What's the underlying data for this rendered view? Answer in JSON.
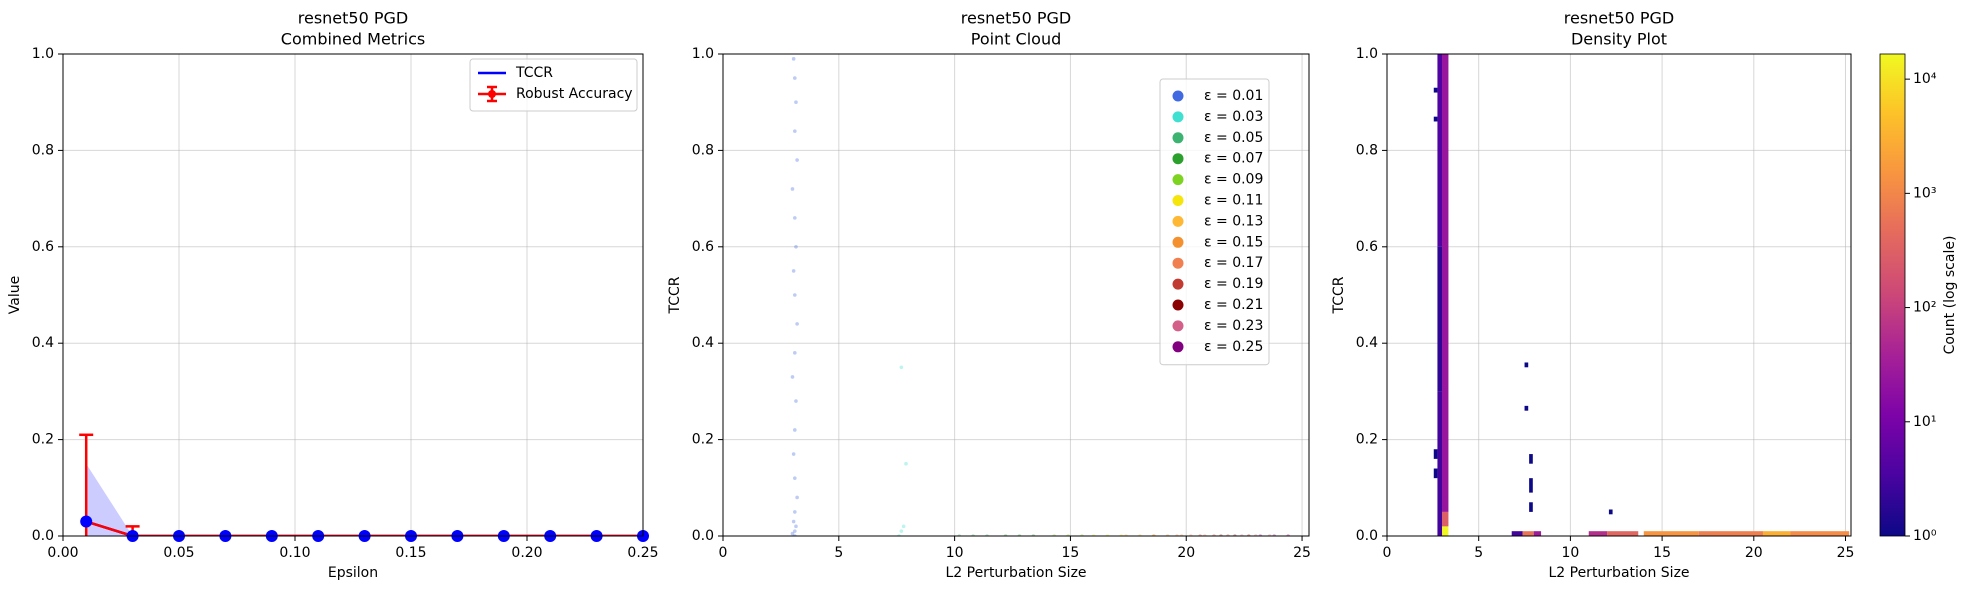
{
  "chart_data": [
    {
      "type": "line",
      "title": "resnet50 PGD",
      "subtitle": "Combined Metrics",
      "x_label": "Epsilon",
      "y_label": "Value",
      "x": [
        0.01,
        0.03,
        0.05,
        0.07,
        0.09,
        0.11,
        0.13,
        0.15,
        0.17,
        0.19,
        0.21,
        0.23,
        0.25
      ],
      "series": [
        {
          "name": "TCCR",
          "color": "#0000ff",
          "values": [
            0.03,
            0,
            0,
            0,
            0,
            0,
            0,
            0,
            0,
            0,
            0,
            0,
            0
          ],
          "band_low": [
            0,
            0,
            0,
            0,
            0,
            0,
            0,
            0,
            0,
            0,
            0,
            0,
            0
          ],
          "band_high": [
            0.15,
            0,
            0,
            0,
            0,
            0,
            0,
            0,
            0,
            0,
            0,
            0,
            0
          ]
        },
        {
          "name": "Robust Accuracy",
          "color": "#ff0000",
          "values": [
            0.03,
            0,
            0,
            0,
            0,
            0,
            0,
            0,
            0,
            0,
            0,
            0,
            0
          ],
          "errors": [
            0.18,
            0.02,
            0,
            0,
            0,
            0,
            0,
            0,
            0,
            0,
            0,
            0,
            0
          ]
        }
      ],
      "xlim": [
        0,
        0.25
      ],
      "xticks": [
        {
          "value": 0,
          "label": "0.00"
        },
        0.05,
        {
          "value": 0.1,
          "label": "0.10"
        },
        0.15,
        {
          "value": 0.2,
          "label": "0.20"
        },
        0.25
      ],
      "ylim": [
        0,
        1
      ],
      "yticks": [
        {
          "value": 0,
          "label": "0.0"
        },
        0.2,
        0.4,
        0.6,
        0.8,
        {
          "value": 1,
          "label": "1.0"
        }
      ],
      "grid": true,
      "legend": "upper right"
    },
    {
      "type": "scatter",
      "title": "resnet50 PGD",
      "subtitle": "Point Cloud",
      "x_label": "L2 Perturbation Size",
      "y_label": "TCCR",
      "series": [
        {
          "name": "ε = 0.01",
          "color": "#4169e1",
          "x": [
            3.05,
            3.1,
            3.15,
            3.1,
            3.2,
            3.0,
            3.1,
            3.15,
            3.05,
            3.1,
            3.2,
            3.1,
            3.0,
            3.15,
            3.1,
            3.05,
            3.1,
            3.2,
            3.1,
            3.05,
            3.15,
            3.1,
            3.0,
            3.1
          ],
          "values": [
            0.99,
            0.95,
            0.9,
            0.84,
            0.78,
            0.72,
            0.66,
            0.6,
            0.55,
            0.5,
            0.44,
            0.38,
            0.33,
            0.28,
            0.22,
            0.17,
            0.12,
            0.08,
            0.05,
            0.03,
            0.02,
            0.01,
            0.005,
            0
          ]
        },
        {
          "name": "ε = 0.03",
          "color": "#40e0d0",
          "x": [
            7.6,
            7.7,
            7.8,
            7.9,
            7.7
          ],
          "values": [
            0,
            0.01,
            0.02,
            0.15,
            0.35
          ]
        },
        {
          "name": "ε = 0.05",
          "color": "#3cb371",
          "x": [
            10.2,
            10.8,
            11.4
          ],
          "values": [
            0,
            0,
            0
          ]
        },
        {
          "name": "ε = 0.07",
          "color": "#2ca02c",
          "x": [
            12.2,
            12.8,
            13.4
          ],
          "values": [
            0,
            0,
            0
          ]
        },
        {
          "name": "ε = 0.09",
          "color": "#7ed321",
          "x": [
            14.3,
            14.9,
            15.5
          ],
          "values": [
            0,
            0,
            0
          ]
        },
        {
          "name": "ε = 0.11",
          "color": "#f5e50a",
          "x": [
            16.0,
            16.6,
            17.2
          ],
          "values": [
            0,
            0,
            0
          ]
        },
        {
          "name": "ε = 0.13",
          "color": "#ffb833",
          "x": [
            17.4,
            18.0,
            18.6
          ],
          "values": [
            0,
            0,
            0
          ]
        },
        {
          "name": "ε = 0.15",
          "color": "#f5902e",
          "x": [
            18.6,
            19.2,
            19.8
          ],
          "values": [
            0,
            0,
            0
          ]
        },
        {
          "name": "ε = 0.17",
          "color": "#f08050",
          "x": [
            19.6,
            20.2,
            20.8
          ],
          "values": [
            0,
            0,
            0
          ]
        },
        {
          "name": "ε = 0.19",
          "color": "#c23b32",
          "x": [
            20.6,
            21.2,
            21.8
          ],
          "values": [
            0,
            0,
            0
          ]
        },
        {
          "name": "ε = 0.21",
          "color": "#8b0000",
          "x": [
            21.5,
            22.1,
            22.7
          ],
          "values": [
            0,
            0,
            0
          ]
        },
        {
          "name": "ε = 0.23",
          "color": "#d36088",
          "x": [
            22.4,
            23.0,
            23.6
          ],
          "values": [
            0,
            0,
            0
          ]
        },
        {
          "name": "ε = 0.25",
          "color": "#800080",
          "x": [
            23.2,
            23.8,
            24.4
          ],
          "values": [
            0,
            0,
            0
          ]
        }
      ],
      "xlim": [
        0,
        25.3
      ],
      "xticks": [
        0,
        5,
        10,
        15,
        20,
        25
      ],
      "ylim": [
        0,
        1
      ],
      "yticks": [
        {
          "value": 0,
          "label": "0.0"
        },
        0.2,
        0.4,
        0.6,
        0.8,
        {
          "value": 1,
          "label": "1.0"
        }
      ],
      "grid": true,
      "legend": "upper right"
    },
    {
      "type": "heatmap",
      "title": "resnet50 PGD",
      "subtitle": "Density Plot",
      "x_label": "L2 Perturbation Size",
      "y_label": "TCCR",
      "cells": {
        "x0": [
          3.0,
          3.0,
          3.0,
          2.75,
          2.75,
          2.75,
          2.55,
          2.55,
          2.55,
          2.55,
          7.5,
          7.5,
          7.75,
          7.75,
          7.75,
          6.8,
          7.4,
          8.0,
          11.0,
          12.0,
          12.1,
          14.0,
          17.0,
          20.5,
          22.0
        ],
        "x1": [
          3.35,
          3.35,
          3.35,
          3.0,
          3.0,
          3.0,
          2.75,
          2.75,
          2.75,
          2.75,
          7.7,
          7.7,
          7.95,
          7.95,
          7.95,
          7.4,
          8.0,
          8.4,
          12.0,
          13.7,
          12.3,
          17.0,
          20.5,
          22.0,
          25.2
        ],
        "y0": [
          0,
          0.02,
          0.05,
          0.6,
          0.3,
          0,
          0.92,
          0.86,
          0.16,
          0.12,
          0.35,
          0.26,
          0.15,
          0.09,
          0.05,
          0,
          0,
          0,
          0,
          0,
          0.045,
          0,
          0,
          0,
          0
        ],
        "y1": [
          0.02,
          0.05,
          1.0,
          1.0,
          0.6,
          0.3,
          0.93,
          0.87,
          0.18,
          0.14,
          0.36,
          0.27,
          0.17,
          0.12,
          0.07,
          0.01,
          0.01,
          0.01,
          0.01,
          0.01,
          0.055,
          0.01,
          0.01,
          0.01,
          0.01
        ],
        "values": [
          16000,
          300,
          25,
          4,
          2,
          3,
          1,
          1,
          1,
          1,
          1,
          1,
          1,
          1,
          1,
          3,
          600,
          30,
          60,
          400,
          1,
          1500,
          800,
          3000,
          1200
        ]
      },
      "xlim": [
        0,
        25.3
      ],
      "xticks": [
        0,
        5,
        10,
        15,
        20,
        25
      ],
      "ylim": [
        0,
        1
      ],
      "yticks": [
        {
          "value": 0,
          "label": "0.0"
        },
        0.2,
        0.4,
        0.6,
        0.8,
        {
          "value": 1,
          "label": "1.0"
        }
      ],
      "grid": true,
      "colorbar": {
        "label": "Count (log scale)",
        "colormap": "plasma",
        "log_scale": true,
        "zlim": [
          1,
          16600
        ],
        "ticks": [
          {
            "value": 1,
            "label": "10⁰"
          },
          {
            "value": 10,
            "label": "10¹"
          },
          {
            "value": 100,
            "label": "10²"
          },
          {
            "value": 1000,
            "label": "10³"
          },
          {
            "value": 10000,
            "label": "10⁴"
          }
        ]
      }
    }
  ]
}
